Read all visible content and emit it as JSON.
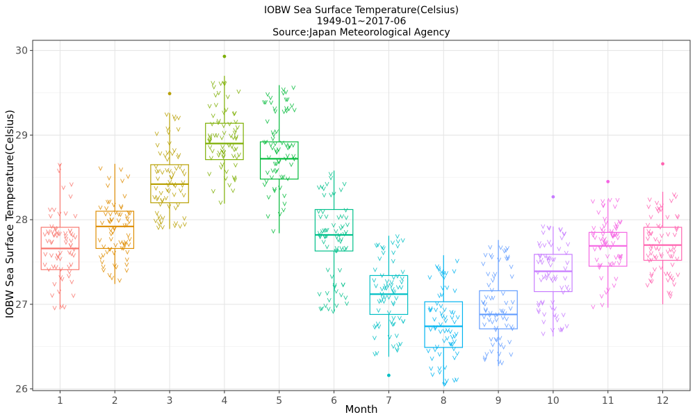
{
  "chart_data": {
    "type": "box",
    "title": "IOBW Sea Surface Temperature(Celsius)",
    "subtitle": "1949-01~2017-06",
    "source": "Source:Japan Meteorological Agency",
    "xlabel": "Month",
    "ylabel": "IOBW Sea Surface Temperature(Celsius)",
    "ylim": [
      25.98,
      30.12
    ],
    "y_ticks": [
      26,
      27,
      28,
      29,
      30
    ],
    "grid": true,
    "legend": "none",
    "jitter_points": "individual monthly observations overlaid as jittered 'v' markers",
    "categories": [
      "1",
      "2",
      "3",
      "4",
      "5",
      "6",
      "7",
      "8",
      "9",
      "10",
      "11",
      "12"
    ],
    "boxes": [
      {
        "month": "1",
        "color": "#F8766D",
        "whisker_low": 26.94,
        "q1": 27.41,
        "median": 27.66,
        "q3": 27.91,
        "whisker_high": 28.66,
        "outliers": [],
        "point_count": 69
      },
      {
        "month": "2",
        "color": "#DE8C00",
        "whisker_low": 27.24,
        "q1": 27.66,
        "median": 27.92,
        "q3": 28.1,
        "whisker_high": 28.66,
        "outliers": [],
        "point_count": 69
      },
      {
        "month": "3",
        "color": "#B79F00",
        "whisker_low": 27.89,
        "q1": 28.2,
        "median": 28.42,
        "q3": 28.65,
        "whisker_high": 29.26,
        "outliers": [
          29.49
        ],
        "point_count": 69
      },
      {
        "month": "4",
        "color": "#7CAE00",
        "whisker_low": 28.19,
        "q1": 28.71,
        "median": 28.9,
        "q3": 29.14,
        "whisker_high": 29.7,
        "outliers": [
          29.93
        ],
        "point_count": 69
      },
      {
        "month": "5",
        "color": "#00BA38",
        "whisker_low": 27.84,
        "q1": 28.48,
        "median": 28.72,
        "q3": 28.92,
        "whisker_high": 29.59,
        "outliers": [],
        "point_count": 69
      },
      {
        "month": "6",
        "color": "#00C08B",
        "whisker_low": 26.91,
        "q1": 27.63,
        "median": 27.82,
        "q3": 28.12,
        "whisker_high": 28.58,
        "outliers": [],
        "point_count": 69
      },
      {
        "month": "7",
        "color": "#00BFC4",
        "whisker_low": 26.38,
        "q1": 26.88,
        "median": 27.12,
        "q3": 27.34,
        "whisker_high": 27.81,
        "outliers": [
          26.16
        ],
        "point_count": 68
      },
      {
        "month": "8",
        "color": "#00B4F0",
        "whisker_low": 26.05,
        "q1": 26.49,
        "median": 26.74,
        "q3": 27.03,
        "whisker_high": 27.58,
        "outliers": [],
        "point_count": 68
      },
      {
        "month": "9",
        "color": "#619CFF",
        "whisker_low": 26.27,
        "q1": 26.71,
        "median": 26.88,
        "q3": 27.16,
        "whisker_high": 27.76,
        "outliers": [],
        "point_count": 68
      },
      {
        "month": "10",
        "color": "#C77CFF",
        "whisker_low": 26.62,
        "q1": 27.15,
        "median": 27.39,
        "q3": 27.59,
        "whisker_high": 27.92,
        "outliers": [
          28.27
        ],
        "point_count": 68
      },
      {
        "month": "11",
        "color": "#F564E3",
        "whisker_low": 26.96,
        "q1": 27.45,
        "median": 27.69,
        "q3": 27.85,
        "whisker_high": 28.24,
        "outliers": [
          28.45
        ],
        "point_count": 68
      },
      {
        "month": "12",
        "color": "#FF64B0",
        "whisker_low": 27.0,
        "q1": 27.52,
        "median": 27.7,
        "q3": 27.91,
        "whisker_high": 28.33,
        "outliers": [
          28.66
        ],
        "point_count": 68
      }
    ]
  }
}
